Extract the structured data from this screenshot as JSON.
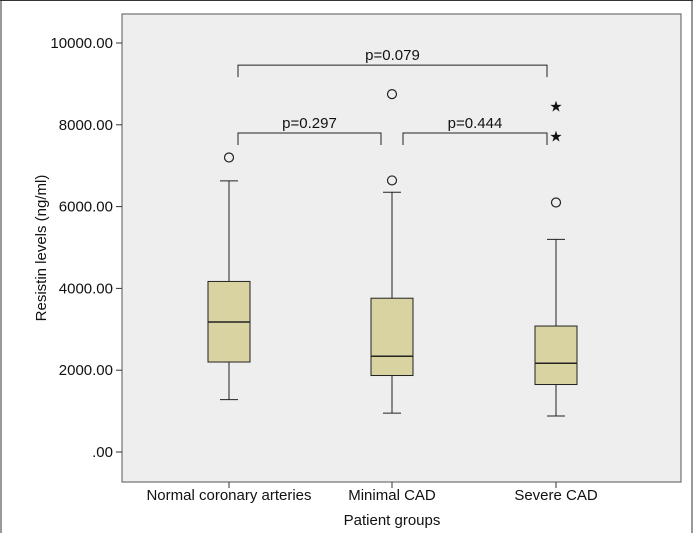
{
  "chart_data": {
    "type": "boxplot",
    "xlabel": "Patient groups",
    "ylabel": "Resistin levels (ng/ml)",
    "ylim": [
      0,
      10000
    ],
    "y_ticks": [
      ".00",
      "2000.00",
      "4000.00",
      "6000.00",
      "8000.00",
      "10000.00"
    ],
    "y_tick_values": [
      0,
      2000,
      4000,
      6000,
      8000,
      10000
    ],
    "categories": [
      "Normal coronary arteries",
      "Minimal CAD",
      "Severe CAD"
    ],
    "groups": [
      {
        "name": "Normal coronary arteries",
        "whisker_low": 1280,
        "q1": 2200,
        "median": 3180,
        "q3": 4170,
        "whisker_high": 6630,
        "outliers": [
          {
            "value": 7200,
            "kind": "circle"
          }
        ]
      },
      {
        "name": "Minimal CAD",
        "whisker_low": 950,
        "q1": 1870,
        "median": 2340,
        "q3": 3760,
        "whisker_high": 6350,
        "outliers": [
          {
            "value": 6640,
            "kind": "circle"
          },
          {
            "value": 8750,
            "kind": "circle"
          }
        ]
      },
      {
        "name": "Severe CAD",
        "whisker_low": 880,
        "q1": 1650,
        "median": 2170,
        "q3": 3080,
        "whisker_high": 5200,
        "outliers": [
          {
            "value": 6100,
            "kind": "circle"
          },
          {
            "value": 7720,
            "kind": "star"
          },
          {
            "value": 8450,
            "kind": "star"
          }
        ]
      }
    ],
    "comparisons": [
      {
        "label": "p=0.079",
        "from": 0,
        "to": 2,
        "level": 9460
      },
      {
        "label": "p=0.297",
        "from": 0,
        "to": 1,
        "level": 7800
      },
      {
        "label": "p=0.444",
        "from": 1,
        "to": 2,
        "level": 7800
      }
    ],
    "colors": {
      "box_fill": "#d9d3a2",
      "plot_bg": "#eeeeee",
      "line": "#222222"
    },
    "grid": false,
    "legend": "none"
  }
}
